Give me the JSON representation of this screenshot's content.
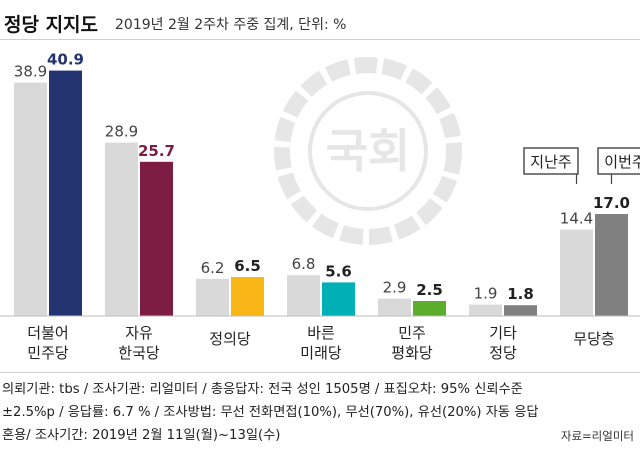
{
  "header": {
    "title": "정당 지지도",
    "subtitle": "2019년 2월 2주차 주중 집계, 단위: %"
  },
  "watermark": {
    "text": "국회"
  },
  "legend": {
    "previous": "지난주",
    "current": "이번주"
  },
  "notes": [
    "의뢰기관: tbs / 조사기관: 리얼미터 / 총응답자: 전국 성인 1505명 / 표집오차: 95% 신뢰수준",
    "±2.5%p / 응답률: 6.7 % / 조사방법: 무선 전화면접(10%), 무선(70%), 유선(20%) 자동 응답",
    "혼용/ 조사기간: 2019년 2월 11일(월)~13일(수)"
  ],
  "source": "자료=리얼미터",
  "colors": {
    "previous": "#d9d9d9",
    "parties": [
      "#233471",
      "#7d1d43",
      "#f8b617",
      "#00b0b7",
      "#5cad2c",
      "#808080",
      "#808080"
    ],
    "watermark": "#e6e6e6"
  },
  "chart_data": {
    "type": "bar",
    "categories": [
      "더불어\n민주당",
      "자유\n한국당",
      "정의당",
      "바른\n미래당",
      "민주\n평화당",
      "기타\n정당",
      "무당층"
    ],
    "series": [
      {
        "name": "지난주",
        "values": [
          38.9,
          28.9,
          6.2,
          6.8,
          2.9,
          1.9,
          14.4
        ]
      },
      {
        "name": "이번주",
        "values": [
          40.9,
          25.7,
          6.5,
          5.6,
          2.5,
          1.8,
          17.0
        ]
      }
    ],
    "value_labels_previous": [
      "38.9",
      "28.9",
      "6.2",
      "6.8",
      "2.9",
      "1.9",
      "14.4"
    ],
    "value_labels_current": [
      "40.9",
      "25.7",
      "6.5",
      "5.6",
      "2.5",
      "1.8",
      "17.0"
    ],
    "ylim": [
      0,
      42
    ],
    "grid": false,
    "legend_placement": "top-right"
  }
}
